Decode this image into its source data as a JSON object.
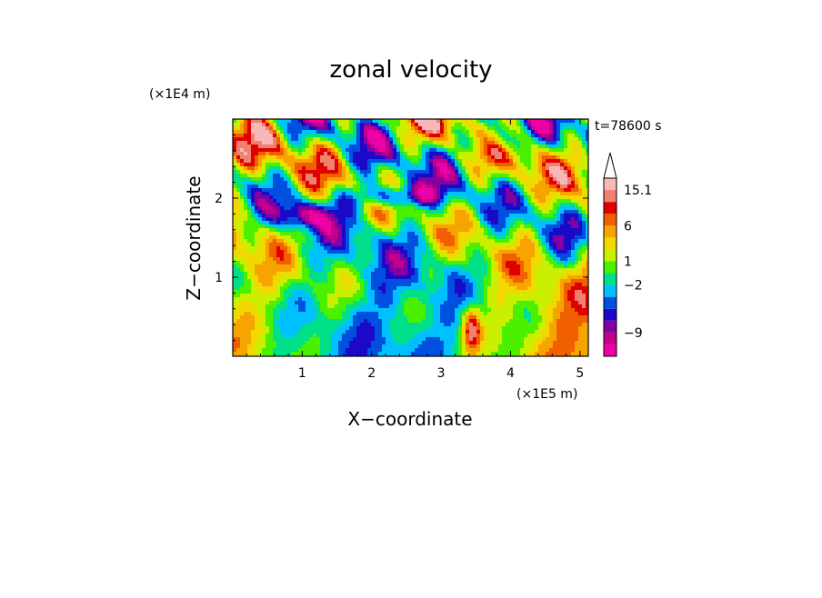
{
  "chart_data": {
    "type": "heatmap",
    "title": "zonal velocity",
    "xlabel": "X−coordinate",
    "ylabel": "Z−coordinate",
    "x_scale_label": "(×1E5 m)",
    "y_scale_label": "(×1E4 m)",
    "time_label": "t=78600 s",
    "xlim": [
      0,
      5.12
    ],
    "ylim": [
      0,
      3.0
    ],
    "x_ticks": [
      {
        "value": 1,
        "label": "1"
      },
      {
        "value": 2,
        "label": "2"
      },
      {
        "value": 3,
        "label": "3"
      },
      {
        "value": 4,
        "label": "4"
      },
      {
        "value": 5,
        "label": "5"
      }
    ],
    "y_ticks": [
      {
        "value": 1,
        "label": "1"
      },
      {
        "value": 2,
        "label": "2"
      }
    ],
    "colorbar": {
      "colors": [
        "#ee00a8",
        "#c4008a",
        "#8400a0",
        "#1a0ac8",
        "#0050e0",
        "#00c0ff",
        "#00e08a",
        "#4af000",
        "#c8f000",
        "#f0d800",
        "#f8a400",
        "#f06000",
        "#e00000",
        "#f08070",
        "#f8b8b8"
      ],
      "labels": [
        {
          "value": "15.1",
          "level": 14
        },
        {
          "value": "6",
          "level": 11
        },
        {
          "value": "1",
          "level": 8
        },
        {
          "value": "−2",
          "level": 6
        },
        {
          "value": "−9",
          "level": 2
        }
      ],
      "extend": "max"
    }
  }
}
